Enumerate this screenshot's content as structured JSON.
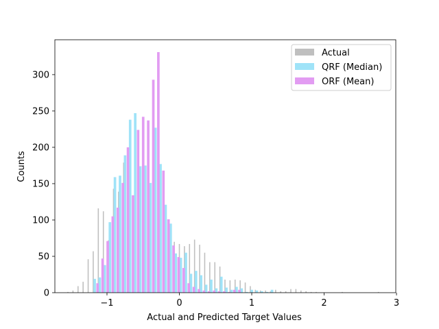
{
  "chart_data": {
    "type": "bar",
    "title": "",
    "xlabel": "Actual and Predicted Target Values",
    "ylabel": "Counts",
    "xlim": [
      -1.72,
      2.99
    ],
    "ylim": [
      0,
      348
    ],
    "xticks": [
      -1,
      0,
      1,
      2,
      3
    ],
    "xtick_labels": [
      "−1",
      "0",
      "1",
      "2",
      "3"
    ],
    "yticks": [
      0,
      50,
      100,
      150,
      200,
      250,
      300
    ],
    "ytick_labels": [
      "0",
      "50",
      "100",
      "150",
      "200",
      "250",
      "300"
    ],
    "grid": false,
    "legend_position": "top-right",
    "series": [
      {
        "name": "Actual",
        "color": "#bfbfbf",
        "bar_width": 0.015,
        "points": [
          [
            -1.54,
            1
          ],
          [
            -1.47,
            3
          ],
          [
            -1.4,
            9
          ],
          [
            -1.33,
            15
          ],
          [
            -1.26,
            46
          ],
          [
            -1.19,
            57
          ],
          [
            -1.12,
            116
          ],
          [
            -1.05,
            112
          ],
          [
            -0.98,
            72
          ],
          [
            -0.91,
            143
          ],
          [
            -0.84,
            139
          ],
          [
            -0.77,
            179
          ],
          [
            -0.7,
            152
          ],
          [
            -0.63,
            134
          ],
          [
            -0.56,
            133
          ],
          [
            -0.49,
            139
          ],
          [
            -0.42,
            132
          ],
          [
            -0.35,
            226
          ],
          [
            -0.28,
            119
          ],
          [
            -0.21,
            116
          ],
          [
            -0.14,
            79
          ],
          [
            -0.07,
            70
          ],
          [
            0.0,
            67
          ],
          [
            0.07,
            64
          ],
          [
            0.14,
            67
          ],
          [
            0.21,
            73
          ],
          [
            0.28,
            66
          ],
          [
            0.35,
            55
          ],
          [
            0.42,
            42
          ],
          [
            0.49,
            42
          ],
          [
            0.56,
            36
          ],
          [
            0.63,
            18
          ],
          [
            0.7,
            17
          ],
          [
            0.77,
            18
          ],
          [
            0.84,
            17
          ],
          [
            0.91,
            14
          ],
          [
            0.98,
            9
          ],
          [
            1.05,
            4
          ],
          [
            1.12,
            3
          ],
          [
            1.19,
            3
          ],
          [
            1.26,
            2
          ],
          [
            1.33,
            4
          ],
          [
            1.4,
            2
          ],
          [
            1.47,
            2
          ],
          [
            1.54,
            5
          ],
          [
            1.61,
            5
          ],
          [
            1.68,
            3
          ],
          [
            1.75,
            2
          ],
          [
            1.82,
            1
          ],
          [
            1.89,
            1
          ],
          [
            2.25,
            1
          ],
          [
            2.75,
            1
          ]
        ]
      },
      {
        "name": "QRF (Median)",
        "color": "#9fe3f8",
        "bar_width": 0.035,
        "points": [
          [
            -1.17,
            19
          ],
          [
            -1.1,
            21
          ],
          [
            -1.03,
            38
          ],
          [
            -0.96,
            97
          ],
          [
            -0.89,
            159
          ],
          [
            -0.82,
            161
          ],
          [
            -0.75,
            189
          ],
          [
            -0.68,
            238
          ],
          [
            -0.61,
            247
          ],
          [
            -0.54,
            174
          ],
          [
            -0.47,
            175
          ],
          [
            -0.4,
            151
          ],
          [
            -0.33,
            227
          ],
          [
            -0.26,
            177
          ],
          [
            -0.19,
            121
          ],
          [
            -0.12,
            95
          ],
          [
            -0.05,
            54
          ],
          [
            0.02,
            48
          ],
          [
            0.09,
            55
          ],
          [
            0.16,
            26
          ],
          [
            0.23,
            30
          ],
          [
            0.3,
            24
          ],
          [
            0.37,
            11
          ],
          [
            0.44,
            18
          ],
          [
            0.51,
            6
          ],
          [
            0.58,
            22
          ],
          [
            0.65,
            7
          ],
          [
            0.72,
            4
          ],
          [
            0.79,
            8
          ],
          [
            0.86,
            6
          ],
          [
            0.93,
            1
          ],
          [
            1.0,
            4
          ],
          [
            1.07,
            3
          ],
          [
            1.14,
            2
          ],
          [
            1.21,
            1
          ],
          [
            1.28,
            4
          ]
        ]
      },
      {
        "name": "ORF (Mean)",
        "color": "#e29cf2",
        "bar_width": 0.035,
        "points": [
          [
            -1.13,
            13
          ],
          [
            -1.06,
            47
          ],
          [
            -0.99,
            71
          ],
          [
            -0.92,
            105
          ],
          [
            -0.85,
            117
          ],
          [
            -0.78,
            151
          ],
          [
            -0.71,
            200
          ],
          [
            -0.64,
            134
          ],
          [
            -0.57,
            224
          ],
          [
            -0.5,
            242
          ],
          [
            -0.43,
            237
          ],
          [
            -0.36,
            293
          ],
          [
            -0.29,
            331
          ],
          [
            -0.22,
            168
          ],
          [
            -0.15,
            101
          ],
          [
            -0.08,
            65
          ],
          [
            -0.01,
            49
          ],
          [
            0.06,
            34
          ],
          [
            0.13,
            13
          ],
          [
            0.2,
            8
          ],
          [
            0.27,
            5
          ],
          [
            0.34,
            3
          ],
          [
            0.41,
            2
          ],
          [
            0.48,
            3
          ],
          [
            0.55,
            2
          ],
          [
            0.62,
            2
          ],
          [
            0.69,
            1
          ],
          [
            0.76,
            4
          ],
          [
            0.83,
            4
          ]
        ]
      }
    ]
  }
}
